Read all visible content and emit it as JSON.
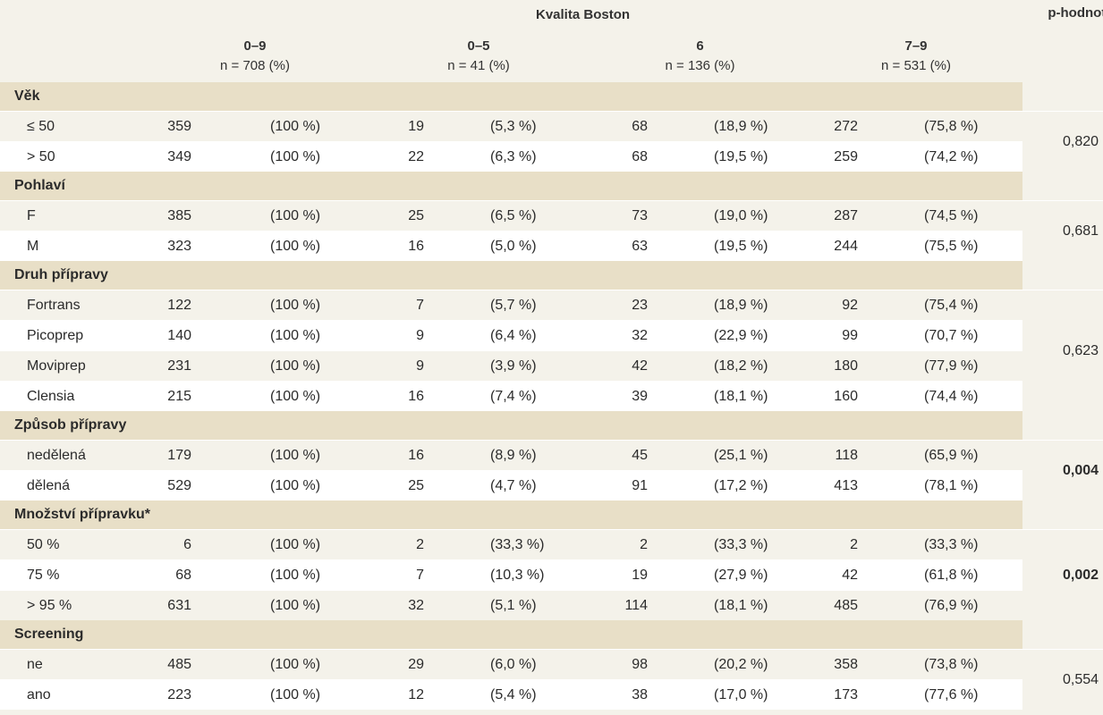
{
  "table": {
    "group_title": "Kvalita Boston",
    "columns": [
      {
        "range": "0–9",
        "n": "n = 708 (%)"
      },
      {
        "range": "0–5",
        "n": "n = 41 (%)"
      },
      {
        "range": "6",
        "n": "n = 136 (%)"
      },
      {
        "range": "7–9",
        "n": "n = 531 (%)"
      }
    ],
    "pvalue_header": "p-hodnota",
    "sections": [
      {
        "title": "Věk",
        "pvalue": "0,820",
        "pvalue_bold": false,
        "rows": [
          {
            "label": "≤ 50",
            "cells": [
              "359",
              "(100 %)",
              "19",
              "(5,3 %)",
              "68",
              "(18,9 %)",
              "272",
              "(75,8 %)"
            ]
          },
          {
            "label": "> 50",
            "cells": [
              "349",
              "(100 %)",
              "22",
              "(6,3 %)",
              "68",
              "(19,5 %)",
              "259",
              "(74,2 %)"
            ]
          }
        ]
      },
      {
        "title": "Pohlaví",
        "pvalue": "0,681",
        "pvalue_bold": false,
        "rows": [
          {
            "label": "F",
            "cells": [
              "385",
              "(100 %)",
              "25",
              "(6,5 %)",
              "73",
              "(19,0 %)",
              "287",
              "(74,5 %)"
            ]
          },
          {
            "label": "M",
            "cells": [
              "323",
              "(100 %)",
              "16",
              "(5,0 %)",
              "63",
              "(19,5 %)",
              "244",
              "(75,5 %)"
            ]
          }
        ]
      },
      {
        "title": "Druh přípravy",
        "pvalue": "0,623",
        "pvalue_bold": false,
        "rows": [
          {
            "label": "Fortrans",
            "cells": [
              "122",
              "(100 %)",
              "7",
              "(5,7 %)",
              "23",
              "(18,9 %)",
              "92",
              "(75,4 %)"
            ]
          },
          {
            "label": "Picoprep",
            "cells": [
              "140",
              "(100 %)",
              "9",
              "(6,4 %)",
              "32",
              "(22,9 %)",
              "99",
              "(70,7 %)"
            ]
          },
          {
            "label": "Moviprep",
            "cells": [
              "231",
              "(100 %)",
              "9",
              "(3,9 %)",
              "42",
              "(18,2 %)",
              "180",
              "(77,9 %)"
            ]
          },
          {
            "label": "Clensia",
            "cells": [
              "215",
              "(100 %)",
              "16",
              "(7,4 %)",
              "39",
              "(18,1 %)",
              "160",
              "(74,4 %)"
            ]
          }
        ]
      },
      {
        "title": "Způsob přípravy",
        "pvalue": "0,004",
        "pvalue_bold": true,
        "rows": [
          {
            "label": "nedělená",
            "cells": [
              "179",
              "(100 %)",
              "16",
              "(8,9 %)",
              "45",
              "(25,1 %)",
              "118",
              "(65,9 %)"
            ]
          },
          {
            "label": "dělená",
            "cells": [
              "529",
              "(100 %)",
              "25",
              "(4,7 %)",
              "91",
              "(17,2 %)",
              "413",
              "(78,1 %)"
            ]
          }
        ]
      },
      {
        "title": "Množství přípravku*",
        "pvalue": "0,002",
        "pvalue_bold": true,
        "rows": [
          {
            "label": "50 %",
            "cells": [
              "6",
              "(100 %)",
              "2",
              "(33,3 %)",
              "2",
              "(33,3 %)",
              "2",
              "(33,3 %)"
            ]
          },
          {
            "label": "75 %",
            "cells": [
              "68",
              "(100 %)",
              "7",
              "(10,3 %)",
              "19",
              "(27,9 %)",
              "42",
              "(61,8 %)"
            ]
          },
          {
            "label": "> 95 %",
            "cells": [
              "631",
              "(100 %)",
              "32",
              "(5,1 %)",
              "114",
              "(18,1 %)",
              "485",
              "(76,9 %)"
            ]
          }
        ]
      },
      {
        "title": "Screening",
        "pvalue": "0,554",
        "pvalue_bold": false,
        "rows": [
          {
            "label": "ne",
            "cells": [
              "485",
              "(100 %)",
              "29",
              "(6,0 %)",
              "98",
              "(20,2 %)",
              "358",
              "(73,8 %)"
            ]
          },
          {
            "label": "ano",
            "cells": [
              "223",
              "(100 %)",
              "12",
              "(5,4 %)",
              "38",
              "(17,0 %)",
              "173",
              "(77,6 %)"
            ]
          }
        ]
      }
    ],
    "colors": {
      "page_bg": "#f4f2ea",
      "section_bg": "#e8dfc7",
      "alt_row_bg": "#ffffff",
      "text": "#2b2b2b"
    }
  }
}
